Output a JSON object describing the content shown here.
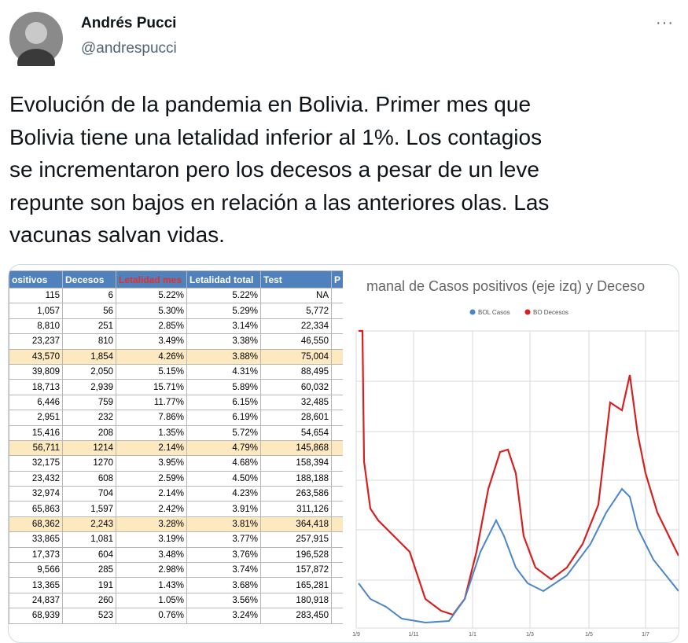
{
  "tweet": {
    "name": "Andrés Pucci",
    "handle": "@andrespucci",
    "more": "···",
    "text_lines": [
      "Evolución de la pandemia en Bolivia. Primer mes que",
      "Bolivia tiene una letalidad inferior al 1%. Los contagios",
      "se incrementaron pero los decesos a pesar de un leve",
      "repunte son bajos en relación a las anteriores olas. Las",
      "vacunas salvan vidas."
    ]
  },
  "table": {
    "header": [
      "ositivos",
      "Decesos",
      "Letalidad  mes",
      "Letalidad total",
      "Test",
      "P"
    ],
    "header_red": 2,
    "highlighted": [
      4,
      10,
      15
    ],
    "rows": [
      [
        "115",
        "6",
        "5.22%",
        "5.22%",
        "NA"
      ],
      [
        "1,057",
        "56",
        "5.30%",
        "5.29%",
        "5,772"
      ],
      [
        "8,810",
        "251",
        "2.85%",
        "3.14%",
        "22,334"
      ],
      [
        "23,237",
        "810",
        "3.49%",
        "3.38%",
        "46,550"
      ],
      [
        "43,570",
        "1,854",
        "4.26%",
        "3.88%",
        "75,004"
      ],
      [
        "39,809",
        "2,050",
        "5.15%",
        "4.31%",
        "88,495"
      ],
      [
        "18,713",
        "2,939",
        "15.71%",
        "5.89%",
        "60,032"
      ],
      [
        "6,446",
        "759",
        "11.77%",
        "6.15%",
        "32,485"
      ],
      [
        "2,951",
        "232",
        "7.86%",
        "6.19%",
        "28,601"
      ],
      [
        "15,416",
        "208",
        "1.35%",
        "5.72%",
        "54,654"
      ],
      [
        "56,711",
        "1214",
        "2.14%",
        "4.79%",
        "145,868"
      ],
      [
        "32,175",
        "1270",
        "3.95%",
        "4.68%",
        "158,394"
      ],
      [
        "23,432",
        "608",
        "2.59%",
        "4.50%",
        "188,188"
      ],
      [
        "32,974",
        "704",
        "2.14%",
        "4.23%",
        "263,586"
      ],
      [
        "65,863",
        "1,597",
        "2.42%",
        "3.91%",
        "311,126"
      ],
      [
        "68,362",
        "2,243",
        "3.28%",
        "3.81%",
        "364,418"
      ],
      [
        "33,865",
        "1,081",
        "3.19%",
        "3.77%",
        "257,915"
      ],
      [
        "17,373",
        "604",
        "3.48%",
        "3.76%",
        "196,528"
      ],
      [
        "9,566",
        "285",
        "2.98%",
        "3.74%",
        "157,872"
      ],
      [
        "13,365",
        "191",
        "1.43%",
        "3.68%",
        "165,281"
      ],
      [
        "24,837",
        "260",
        "1.05%",
        "3.56%",
        "180,918"
      ],
      [
        "68,939",
        "523",
        "0.76%",
        "3.24%",
        "283,450"
      ]
    ]
  },
  "chart": {
    "title": "manal de Casos positivos (eje izq) y Deceso",
    "legend": [
      {
        "name": "BOL Casos",
        "color": "#4a86c8"
      },
      {
        "name": "BO Decesos",
        "color": "#d62020"
      }
    ],
    "x_labels": [
      "1/9",
      "1/11",
      "1/1",
      "1/3",
      "1/5",
      "1/7"
    ]
  }
}
